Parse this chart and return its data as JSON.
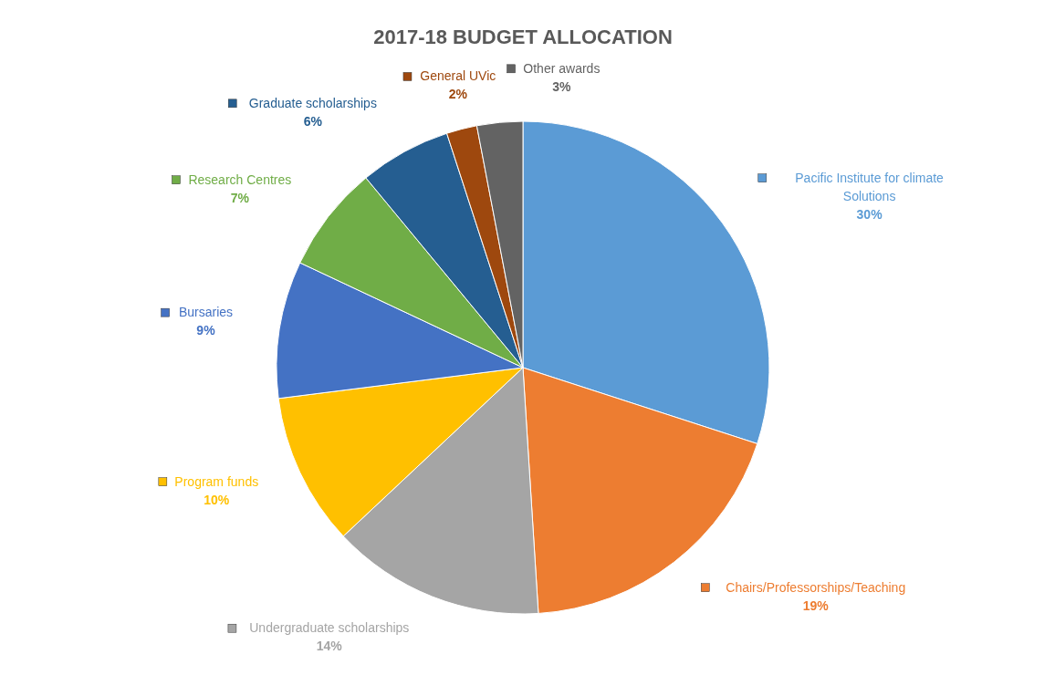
{
  "chart_data": {
    "type": "pie",
    "title": "2017-18 BUDGET  ALLOCATION",
    "categories": [
      "Pacific  Institute for climate Solutions",
      "Chairs/Professorships/Teaching",
      "Undergraduate scholarships",
      "Program funds",
      "Bursaries",
      "Research Centres",
      "Graduate scholarships",
      "General UVic",
      "Other awards"
    ],
    "values": [
      30,
      19,
      14,
      10,
      9,
      7,
      6,
      2,
      3
    ],
    "value_labels": [
      "30%",
      "19%",
      "14%",
      "10%",
      "9%",
      "7%",
      "6%",
      "2%",
      "3%"
    ],
    "colors": [
      "#5b9bd5",
      "#ed7d31",
      "#a5a5a5",
      "#ffc000",
      "#4472c4",
      "#70ad47",
      "#255e91",
      "#9e480e",
      "#636363"
    ],
    "legend": "right"
  }
}
